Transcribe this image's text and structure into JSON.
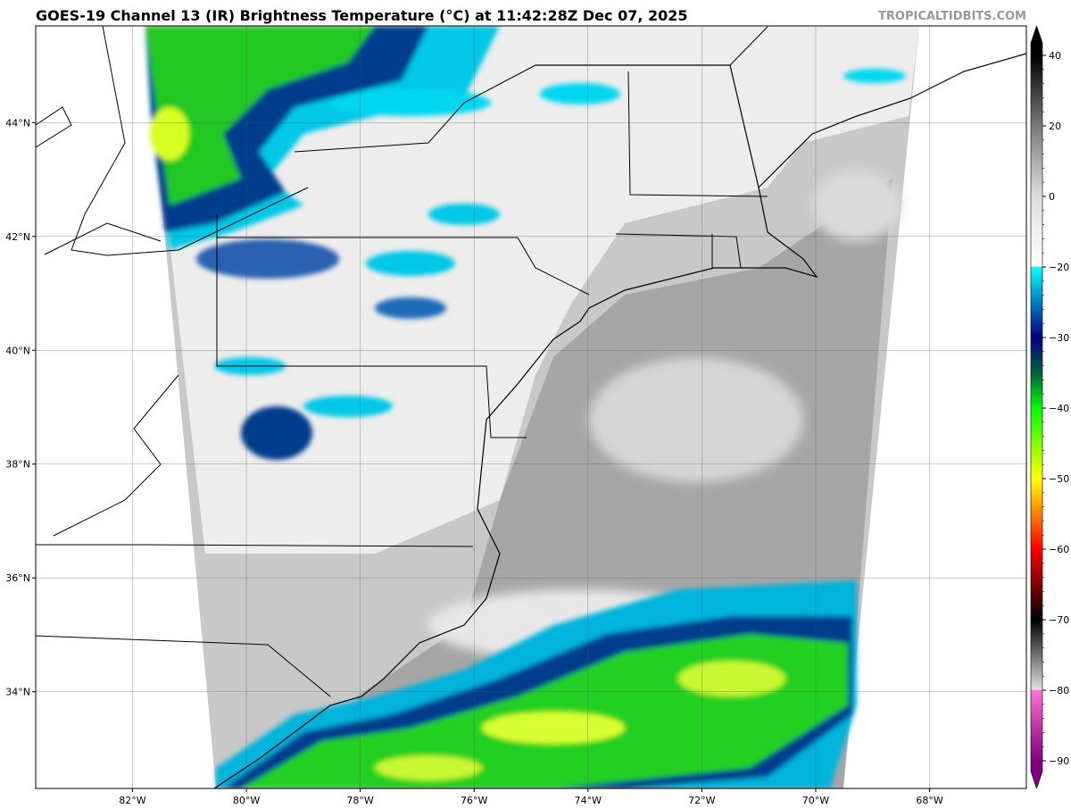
{
  "title": "GOES-19 Channel 13 (IR) Brightness Temperature (°C) at 11:42:28Z Dec 07, 2025",
  "watermark": "TROPICALTIDBITS.COM",
  "map": {
    "projection": "lat-lon",
    "lon_range": [
      -83.7,
      -66.3
    ],
    "lat_range": [
      32.3,
      45.7
    ],
    "grid": true,
    "x_ticks": [
      {
        "lon": -82,
        "label": "82°W"
      },
      {
        "lon": -80,
        "label": "80°W"
      },
      {
        "lon": -78,
        "label": "78°W"
      },
      {
        "lon": -76,
        "label": "76°W"
      },
      {
        "lon": -74,
        "label": "74°W"
      },
      {
        "lon": -72,
        "label": "72°W"
      },
      {
        "lon": -70,
        "label": "70°W"
      },
      {
        "lon": -68,
        "label": "68°W"
      }
    ],
    "y_ticks": [
      {
        "lat": 44,
        "label": "44°N"
      },
      {
        "lat": 42,
        "label": "42°N"
      },
      {
        "lat": 40,
        "label": "40°N"
      },
      {
        "lat": 38,
        "label": "38°N"
      },
      {
        "lat": 36,
        "label": "36°N"
      },
      {
        "lat": 34,
        "label": "34°N"
      }
    ],
    "colors": {
      "land_background": "#ffffff",
      "coastline": "#000000",
      "warm_clear": "#b4b4b4",
      "ocean_clear": "#a0a0a0"
    }
  },
  "colorbar": {
    "ticks": [
      {
        "value": 40,
        "label": "40"
      },
      {
        "value": 20,
        "label": "20"
      },
      {
        "value": 0,
        "label": "0"
      },
      {
        "value": -20,
        "label": "−20"
      },
      {
        "value": -30,
        "label": "−30"
      },
      {
        "value": -40,
        "label": "−40"
      },
      {
        "value": -50,
        "label": "−50"
      },
      {
        "value": -60,
        "label": "−60"
      },
      {
        "value": -70,
        "label": "−70"
      },
      {
        "value": -80,
        "label": "−80"
      },
      {
        "value": -90,
        "label": "−90"
      }
    ],
    "stops": [
      {
        "value": 40,
        "color": "#000000"
      },
      {
        "value": 20,
        "color": "#7a7a7a"
      },
      {
        "value": 0,
        "color": "#dedede"
      },
      {
        "value": -19.9,
        "color": "#ffffff"
      },
      {
        "value": -20,
        "color": "#00ffff"
      },
      {
        "value": -25,
        "color": "#0080c0"
      },
      {
        "value": -30,
        "color": "#000080"
      },
      {
        "value": -35,
        "color": "#006040"
      },
      {
        "value": -40,
        "color": "#00ff00"
      },
      {
        "value": -50,
        "color": "#ffff00"
      },
      {
        "value": -55,
        "color": "#ff8000"
      },
      {
        "value": -60,
        "color": "#ff0000"
      },
      {
        "value": -65,
        "color": "#800000"
      },
      {
        "value": -70,
        "color": "#000000"
      },
      {
        "value": -79.9,
        "color": "#e0e0e0"
      },
      {
        "value": -80,
        "color": "#ff70d0"
      },
      {
        "value": -90,
        "color": "#800080"
      }
    ],
    "extend": "both"
  }
}
